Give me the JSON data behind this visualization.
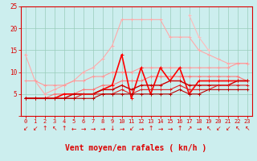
{
  "x": [
    0,
    1,
    2,
    3,
    4,
    5,
    6,
    7,
    8,
    9,
    10,
    11,
    12,
    13,
    14,
    15,
    16,
    17,
    18,
    19,
    20,
    21,
    22,
    23
  ],
  "series": [
    {
      "y": [
        14,
        8,
        5,
        6,
        7,
        8,
        10,
        11,
        13,
        16,
        22,
        22,
        22,
        22,
        22,
        18,
        18,
        18,
        15,
        14,
        13,
        12,
        12,
        12
      ],
      "color": "#ffaaaa",
      "lw": 0.8,
      "marker": "+"
    },
    {
      "y": [
        null,
        null,
        null,
        null,
        null,
        null,
        null,
        null,
        null,
        null,
        null,
        null,
        null,
        null,
        null,
        null,
        null,
        23,
        18,
        15,
        null,
        null,
        null,
        null
      ],
      "color": "#ffbbbb",
      "lw": 0.8,
      "marker": "+"
    },
    {
      "y": [
        8,
        8,
        7,
        7,
        7,
        8,
        8,
        9,
        9,
        10,
        10,
        10,
        11,
        11,
        11,
        11,
        11,
        11,
        11,
        11,
        11,
        11,
        12,
        12
      ],
      "color": "#ff9999",
      "lw": 0.8,
      "marker": "+"
    },
    {
      "y": [
        4,
        4,
        4,
        5,
        5,
        5,
        6,
        6,
        7,
        7,
        8,
        8,
        8,
        9,
        9,
        9,
        9,
        9,
        9,
        9,
        9,
        9,
        9,
        8
      ],
      "color": "#ff7777",
      "lw": 0.8,
      "marker": "+"
    },
    {
      "y": [
        4,
        4,
        4,
        4,
        5,
        5,
        5,
        5,
        6,
        7,
        14,
        4,
        11,
        5,
        11,
        8,
        11,
        5,
        8,
        8,
        8,
        8,
        8,
        8
      ],
      "color": "#ff0000",
      "lw": 1.2,
      "marker": "+"
    },
    {
      "y": [
        4,
        4,
        4,
        4,
        4,
        5,
        5,
        5,
        6,
        6,
        7,
        6,
        7,
        7,
        7,
        8,
        8,
        7,
        7,
        7,
        7,
        7,
        8,
        8
      ],
      "color": "#cc0000",
      "lw": 1.0,
      "marker": "+"
    },
    {
      "y": [
        4,
        4,
        4,
        4,
        4,
        4,
        5,
        5,
        5,
        5,
        6,
        5,
        6,
        6,
        6,
        6,
        7,
        6,
        6,
        6,
        7,
        7,
        7,
        7
      ],
      "color": "#dd2222",
      "lw": 0.8,
      "marker": "+"
    },
    {
      "y": [
        4,
        4,
        4,
        4,
        4,
        4,
        4,
        4,
        5,
        5,
        5,
        5,
        5,
        5,
        5,
        5,
        6,
        5,
        5,
        6,
        6,
        6,
        6,
        6
      ],
      "color": "#bb0000",
      "lw": 0.8,
      "marker": "+"
    }
  ],
  "xlabel": "Vent moyen/en rafales ( kn/h )",
  "xlim": [
    -0.5,
    23.5
  ],
  "ylim": [
    0,
    25
  ],
  "yticks": [
    0,
    5,
    10,
    15,
    20,
    25
  ],
  "xticks": [
    0,
    1,
    2,
    3,
    4,
    5,
    6,
    7,
    8,
    9,
    10,
    11,
    12,
    13,
    14,
    15,
    16,
    17,
    18,
    19,
    20,
    21,
    22,
    23
  ],
  "bg_color": "#cceeee",
  "grid_color": "#99ccbb",
  "tick_color": "#dd0000",
  "label_color": "#dd0000",
  "wind_arrows": [
    "↙",
    "↙",
    "↑",
    "↖",
    "↑",
    "←",
    "→",
    "→",
    "→",
    "↓",
    "→",
    "↙",
    "→",
    "↑",
    "→",
    "→",
    "↑",
    "↗",
    "→",
    "↖",
    "↙",
    "↙",
    "↖",
    "↖"
  ]
}
